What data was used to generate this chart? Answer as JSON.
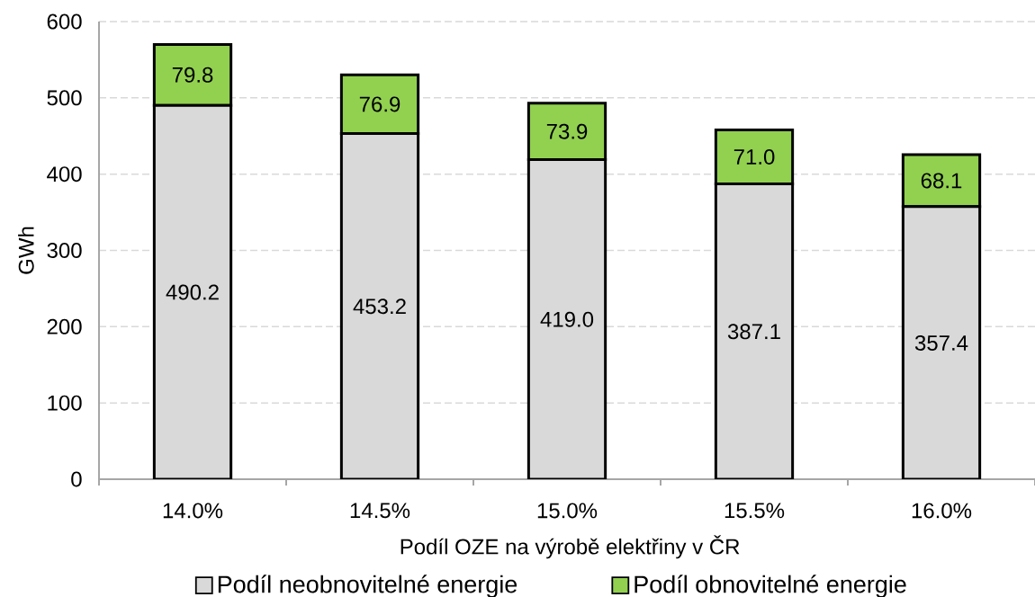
{
  "chart_data": {
    "type": "bar",
    "stacked": true,
    "xlabel": "Podíl OZE na výrobě elektřiny v ČR",
    "ylabel": "GWh",
    "categories": [
      "14.0%",
      "14.5%",
      "15.0%",
      "15.5%",
      "16.0%"
    ],
    "series": [
      {
        "name": "Podíl neobnovitelné energie",
        "color": "#d9d9d9",
        "values": [
          490.2,
          453.2,
          419.0,
          387.1,
          357.4
        ],
        "value_labels": [
          "490.2",
          "453.2",
          "419.0",
          "387.1",
          "357.4"
        ]
      },
      {
        "name": "Podíl obnovitelné energie",
        "color": "#92d050",
        "values": [
          79.8,
          76.9,
          73.9,
          71.0,
          68.1
        ],
        "value_labels": [
          "79.8",
          "76.9",
          "73.9",
          "71.0",
          "68.1"
        ]
      }
    ],
    "ylim": [
      0,
      600
    ],
    "yticks": [
      0,
      100,
      200,
      300,
      400,
      500,
      600
    ],
    "grid": "y",
    "legend": "bottom"
  }
}
